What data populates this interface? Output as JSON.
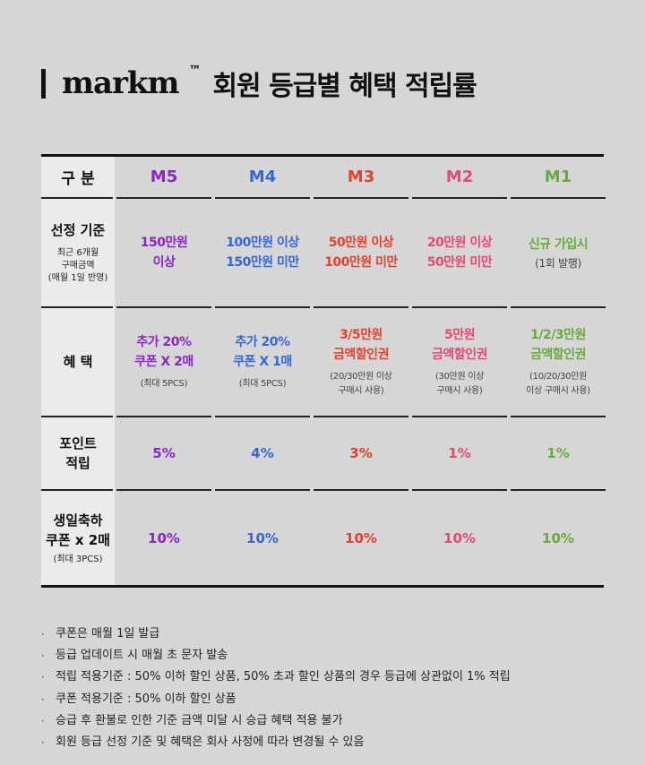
{
  "title": {
    "brand": "markm",
    "tm": "™",
    "text": "회원 등급별 혜택 적립률"
  },
  "colors": {
    "M5": "#8a25c8",
    "M4": "#3568d6",
    "M3": "#e4412e",
    "M2": "#e44a72",
    "M1": "#6aa93c"
  },
  "table": {
    "corner_label": "구 분",
    "grades": [
      "M5",
      "M4",
      "M3",
      "M2",
      "M1"
    ],
    "rows": {
      "criteria": {
        "title": "선정 기준",
        "sub1": "최근 6개월",
        "sub2": "구매금액",
        "sub3": "(매월 1일 반영)",
        "cells": [
          {
            "line1": "150만원",
            "line2": "이상"
          },
          {
            "line1": "100만원 이상",
            "line2": "150만원 미만"
          },
          {
            "line1": "50만원 이상",
            "line2": "100만원 미만"
          },
          {
            "line1": "20만원 이상",
            "line2": "50만원 미만"
          },
          {
            "line1": "신규 가입시",
            "line2": "(1회 발행)"
          }
        ]
      },
      "benefit": {
        "title": "혜 택",
        "cells": [
          {
            "line1": "추가 20%",
            "line2": "쿠폰 X 2매",
            "sub1": "(최대 5PCS)",
            "sub2": ""
          },
          {
            "line1": "추가 20%",
            "line2": "쿠폰 X 1매",
            "sub1": "(최대 5PCS)",
            "sub2": ""
          },
          {
            "line1": "3/5만원",
            "line2": "금액할인권",
            "sub1": "(20/30만원 이상",
            "sub2": "구매시 사용)"
          },
          {
            "line1": "5만원",
            "line2": "금액할인권",
            "sub1": "(30만원 이상",
            "sub2": "구매시 사용)"
          },
          {
            "line1": "1/2/3만원",
            "line2": "금액할인권",
            "sub1": "(10/20/30만원",
            "sub2": "이상 구매시 사용)"
          }
        ]
      },
      "points": {
        "title1": "포인트",
        "title2": "적립",
        "cells": [
          "5%",
          "4%",
          "3%",
          "1%",
          "1%"
        ]
      },
      "birthday": {
        "title1": "생일축하",
        "title2": "쿠폰 x 2매",
        "sub": "(최대 3PCS)",
        "cells": [
          "10%",
          "10%",
          "10%",
          "10%",
          "10%"
        ]
      }
    }
  },
  "notes": [
    "쿠폰은 매월 1일 발급",
    "등급 업데이트 시 매월 초 문자 발송",
    "적립 적용기준 : 50% 이하 할인 상품, 50% 초과 할인 상품의 경우 등급에 상관없이 1% 적립",
    "쿠폰 적용기준 : 50% 이하 할인 상품",
    "승급 후 환불로 인한 기준 금액 미달 시 승급 혜택 적용 불가",
    "회원 등급 선정 기준 및 혜택은 회사 사정에 따라 변경될 수 있음"
  ],
  "note_bullet": "·"
}
